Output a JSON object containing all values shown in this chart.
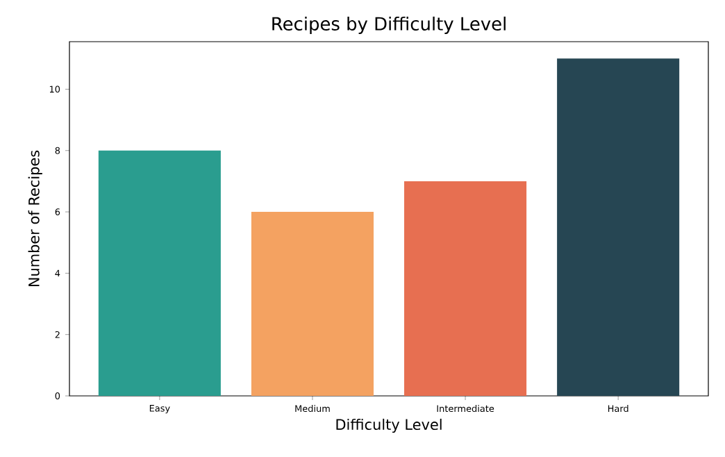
{
  "chart_data": {
    "type": "bar",
    "title": "Recipes by Difficulty Level",
    "xlabel": "Difficulty Level",
    "ylabel": "Number of Recipes",
    "categories": [
      "Easy",
      "Medium",
      "Intermediate",
      "Hard"
    ],
    "values": [
      8,
      6,
      7,
      11
    ],
    "colors": [
      "#2a9d8f",
      "#f4a261",
      "#e76f51",
      "#264653"
    ],
    "ylim": [
      0,
      11.55
    ],
    "yticks": [
      0,
      2,
      4,
      6,
      8,
      10
    ]
  }
}
